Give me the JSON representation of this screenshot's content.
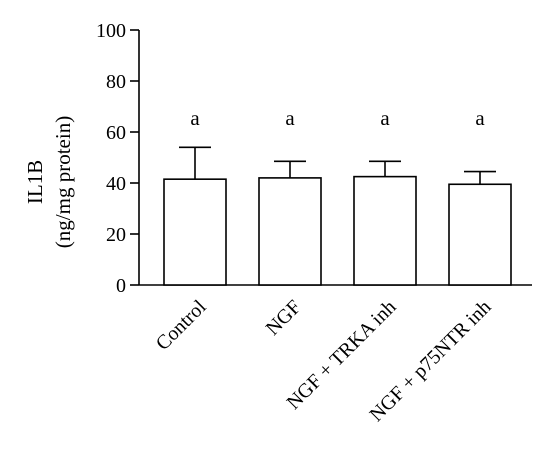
{
  "chart_data": {
    "type": "bar",
    "categories": [
      "Control",
      "NGF",
      "NGF + TRKA inh",
      "NGF + p75NTR inh"
    ],
    "values": [
      41.5,
      42,
      42.5,
      39.5
    ],
    "error_upper": [
      54,
      48.5,
      48.5,
      44.5
    ],
    "annotations": [
      "a",
      "a",
      "a",
      "a"
    ],
    "ylabel_line1": "IL1B",
    "ylabel_line2": "(ng/mg protein)",
    "xlabel": "",
    "title": "",
    "ylim": [
      0,
      100
    ],
    "yticks": [
      "0",
      "20",
      "40",
      "60",
      "80",
      "100"
    ],
    "grid": false,
    "legend": "none",
    "bar_fill": "#ffffff",
    "stroke_color": "#000000"
  }
}
